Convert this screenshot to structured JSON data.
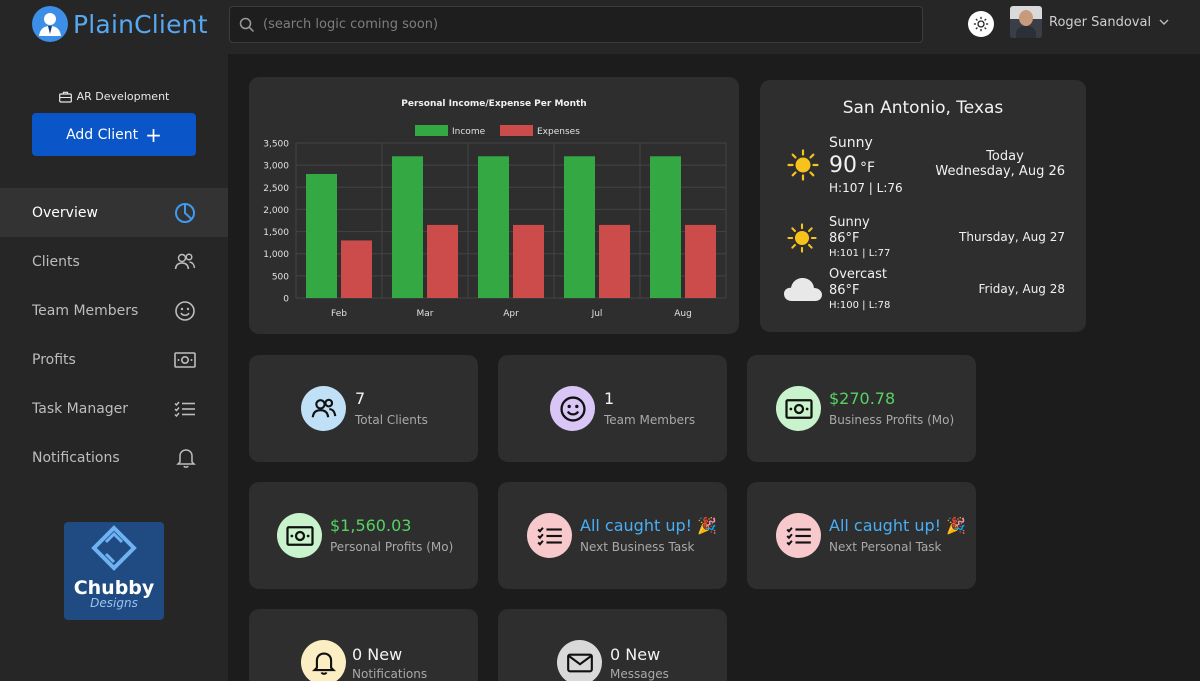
{
  "app": {
    "name": "PlainClient"
  },
  "search": {
    "placeholder": "(search logic coming soon)"
  },
  "user": {
    "name": "Roger Sandoval"
  },
  "sidebar": {
    "company": "AR Development",
    "add_client_label": "Add Client",
    "items": [
      {
        "label": "Overview",
        "icon": "pie-chart-icon",
        "active": true
      },
      {
        "label": "Clients",
        "icon": "users-icon"
      },
      {
        "label": "Team Members",
        "icon": "smile-icon"
      },
      {
        "label": "Profits",
        "icon": "cash-icon"
      },
      {
        "label": "Task Manager",
        "icon": "task-list-icon"
      },
      {
        "label": "Notifications",
        "icon": "bell-icon"
      }
    ],
    "brand": {
      "line1": "Chubby",
      "line2": "Designs"
    }
  },
  "chart_data": {
    "type": "bar",
    "title": "Personal Income/Expense Per Month",
    "categories": [
      "Feb",
      "Mar",
      "Apr",
      "Jul",
      "Aug"
    ],
    "series": [
      {
        "name": "Income",
        "color": "#33a843",
        "values": [
          2800,
          3200,
          3200,
          3200,
          3200
        ]
      },
      {
        "name": "Expenses",
        "color": "#cc4b4b",
        "values": [
          1300,
          1650,
          1650,
          1650,
          1650
        ]
      }
    ],
    "ylim": [
      0,
      3500
    ],
    "yticks": [
      0,
      500,
      1000,
      1500,
      2000,
      2500,
      3000,
      3500
    ],
    "ytick_labels": [
      "0",
      "500",
      "1,000",
      "1,500",
      "2,000",
      "2,500",
      "3,000",
      "3,500"
    ],
    "grid": true,
    "legend": "top"
  },
  "weather": {
    "location": "San Antonio, Texas",
    "today": {
      "label": "Today",
      "date": "Wednesday, Aug 26",
      "condition": "Sunny",
      "temp": "90",
      "unit": "°F",
      "hilo": "H:107 | L:76",
      "icon": "sun-icon"
    },
    "day2": {
      "date": "Thursday, Aug 27",
      "condition": "Sunny",
      "temp": "86°F",
      "hilo": "H:101 | L:77",
      "icon": "sun-icon"
    },
    "day3": {
      "date": "Friday, Aug 28",
      "condition": "Overcast",
      "temp": "86°F",
      "hilo": "H:100 | L:78",
      "icon": "cloud-icon"
    }
  },
  "stats": {
    "clients": {
      "value": "7",
      "label": "Total Clients",
      "icon": "users-icon"
    },
    "team": {
      "value": "1",
      "label": "Team Members",
      "icon": "smile-icon"
    },
    "business": {
      "value": "$270.78",
      "label": "Business Profits (Mo)",
      "icon": "cash-icon"
    },
    "personal": {
      "value": "$1,560.03",
      "label": "Personal Profits (Mo)",
      "icon": "cash-icon"
    },
    "business_task": {
      "value": "All caught up! 🎉",
      "label": "Next Business Task",
      "icon": "task-list-icon"
    },
    "personal_task": {
      "value": "All caught up! 🎉",
      "label": "Next Personal Task",
      "icon": "task-list-icon"
    },
    "notifications": {
      "value": "0 New",
      "label": "Notifications",
      "icon": "bell-icon"
    },
    "messages": {
      "value": "0 New",
      "label": "Messages",
      "icon": "mail-icon"
    }
  },
  "colors": {
    "accent": "#0a55c8",
    "logo": "#57a8f2",
    "positive": "#56d364",
    "info": "#49aef5"
  }
}
